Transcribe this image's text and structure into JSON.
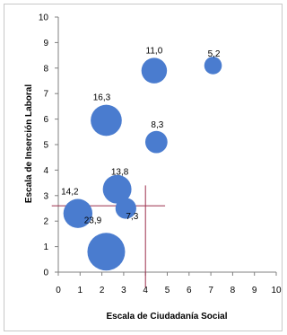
{
  "chart_data": {
    "type": "scatter",
    "subtype": "bubble",
    "xlabel": "Escala de Ciudadanía Social",
    "ylabel": "Escala de Inserción Laboral",
    "xlim": [
      0,
      10
    ],
    "ylim": [
      0,
      10
    ],
    "x_ticks": [
      "0",
      "1",
      "2",
      "3",
      "4",
      "5",
      "6",
      "7",
      "8",
      "9",
      "10"
    ],
    "y_ticks": [
      "0",
      "1",
      "2",
      "3",
      "4",
      "5",
      "6",
      "7",
      "8",
      "9",
      "10"
    ],
    "grid": false,
    "legend": "none",
    "bubble_color": "#4a7ccf",
    "reference_line_color": "#9c2f4c",
    "reference_lines": {
      "x": 4.0,
      "y": 2.6
    },
    "points": [
      {
        "x": 0.9,
        "y": 2.3,
        "size": 14.2,
        "label": "14,2"
      },
      {
        "x": 2.2,
        "y": 0.8,
        "size": 23.9,
        "label": "23,9"
      },
      {
        "x": 2.2,
        "y": 5.95,
        "size": 16.3,
        "label": "16,3"
      },
      {
        "x": 2.7,
        "y": 3.25,
        "size": 13.8,
        "label": "13,8"
      },
      {
        "x": 3.1,
        "y": 2.5,
        "size": 7.3,
        "label": "7,3"
      },
      {
        "x": 4.4,
        "y": 7.9,
        "size": 11.0,
        "label": "11,0"
      },
      {
        "x": 4.5,
        "y": 5.1,
        "size": 8.3,
        "label": "8,3"
      },
      {
        "x": 7.1,
        "y": 8.1,
        "size": 5.2,
        "label": "5,2"
      }
    ]
  }
}
